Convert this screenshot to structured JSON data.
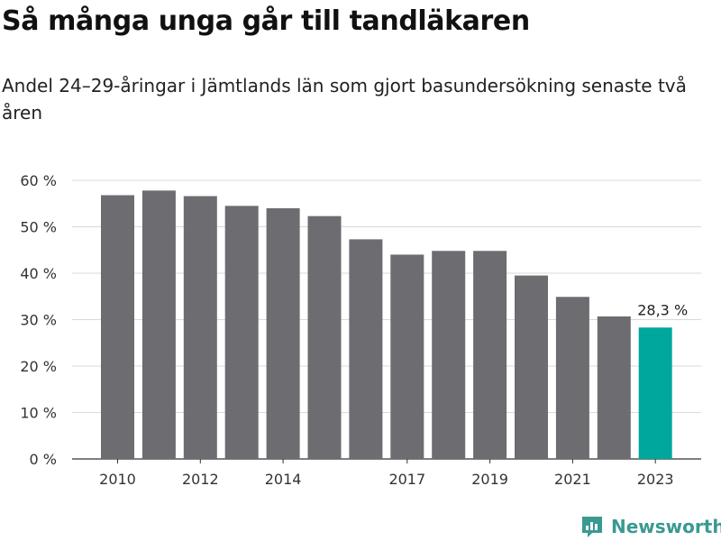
{
  "title": "Så många unga går till tandläkaren",
  "subtitle": "Andel 24–29-åringar i Jämtlands län som gjort basundersökning senaste två åren",
  "brand": "Newsworthy",
  "colors": {
    "bar": "#6d6c71",
    "highlight": "#00a79d",
    "grid": "#d9d9d9",
    "brand": "#3a9a92"
  },
  "chart_data": {
    "type": "bar",
    "categories": [
      "2010",
      "2011",
      "2012",
      "2013",
      "2014",
      "2015",
      "2016",
      "2017",
      "2018",
      "2019",
      "2020",
      "2021",
      "2022",
      "2023"
    ],
    "values": [
      56.8,
      57.8,
      56.6,
      54.5,
      54.0,
      52.3,
      47.3,
      44.0,
      44.8,
      44.8,
      39.5,
      34.9,
      30.7,
      28.3
    ],
    "xtick_labels": [
      "2010",
      "",
      "2012",
      "",
      "2014",
      "",
      "",
      "2017",
      "",
      "2019",
      "",
      "2021",
      "",
      "2023"
    ],
    "yticks": [
      "0 %",
      "10 %",
      "20 %",
      "30 %",
      "40 %",
      "50 %",
      "60 %"
    ],
    "ylim": [
      0,
      60
    ],
    "highlight_index": 13,
    "annotation": "28,3 %",
    "grid": true,
    "legend": "none",
    "title": "Så många unga går till tandläkaren",
    "xlabel": "",
    "ylabel": ""
  }
}
